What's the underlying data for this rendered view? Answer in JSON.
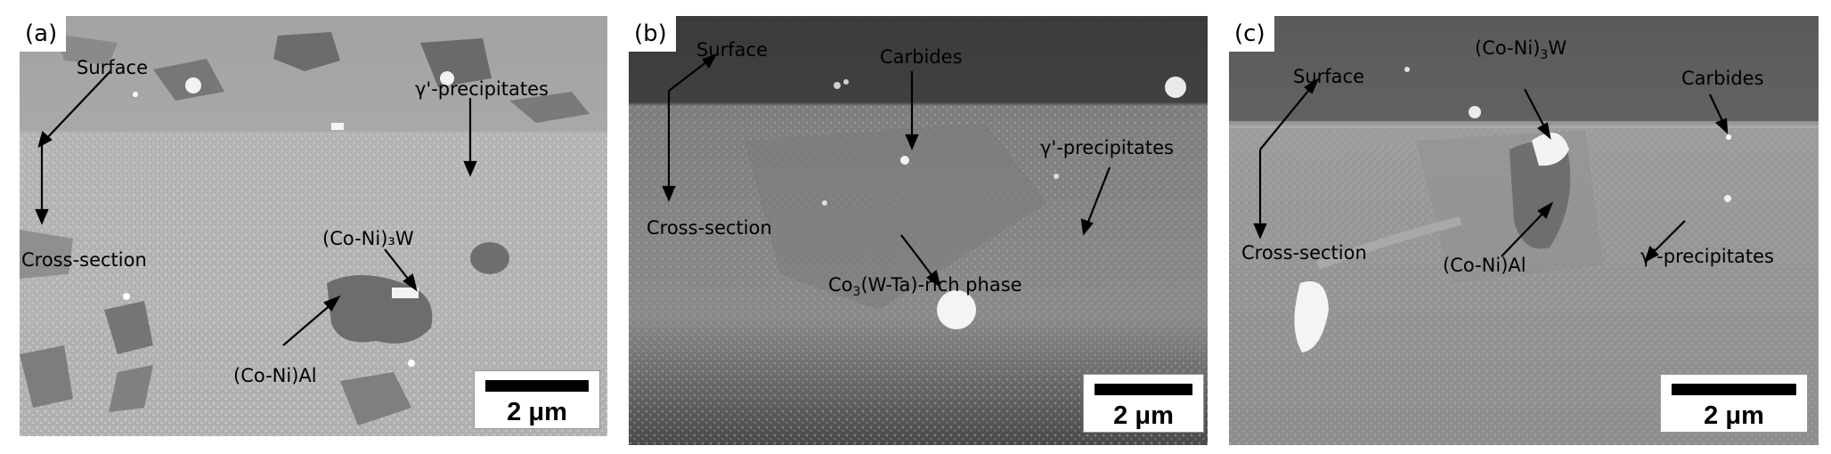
{
  "panels": [
    {
      "label": "(a)",
      "annotations": {
        "surface": "Surface",
        "gamma": "γ'-precipitates",
        "cross": "Cross-section",
        "conw": "(Co-Ni)₃W",
        "conal": "(Co-Ni)Al"
      },
      "scale": "2 μm"
    },
    {
      "label": "(b)",
      "annotations": {
        "surface": "Surface",
        "carbides": "Carbides",
        "gamma": "γ'-precipitates",
        "cross": "Cross-section",
        "rich_prefix": "Co",
        "rich_sub": "3",
        "rich_suffix": "(W-Ta)-rich phase"
      },
      "scale": "2 μm"
    },
    {
      "label": "(c)",
      "annotations": {
        "surface": "Surface",
        "conw_prefix": "(Co-Ni)",
        "conw_sub": "3",
        "conw_suffix": "W",
        "carbides": "Carbides",
        "cross": "Cross-section",
        "conal": "(Co-Ni)Al",
        "gamma": "γ'-precipitates"
      },
      "scale": "2 μm"
    }
  ]
}
